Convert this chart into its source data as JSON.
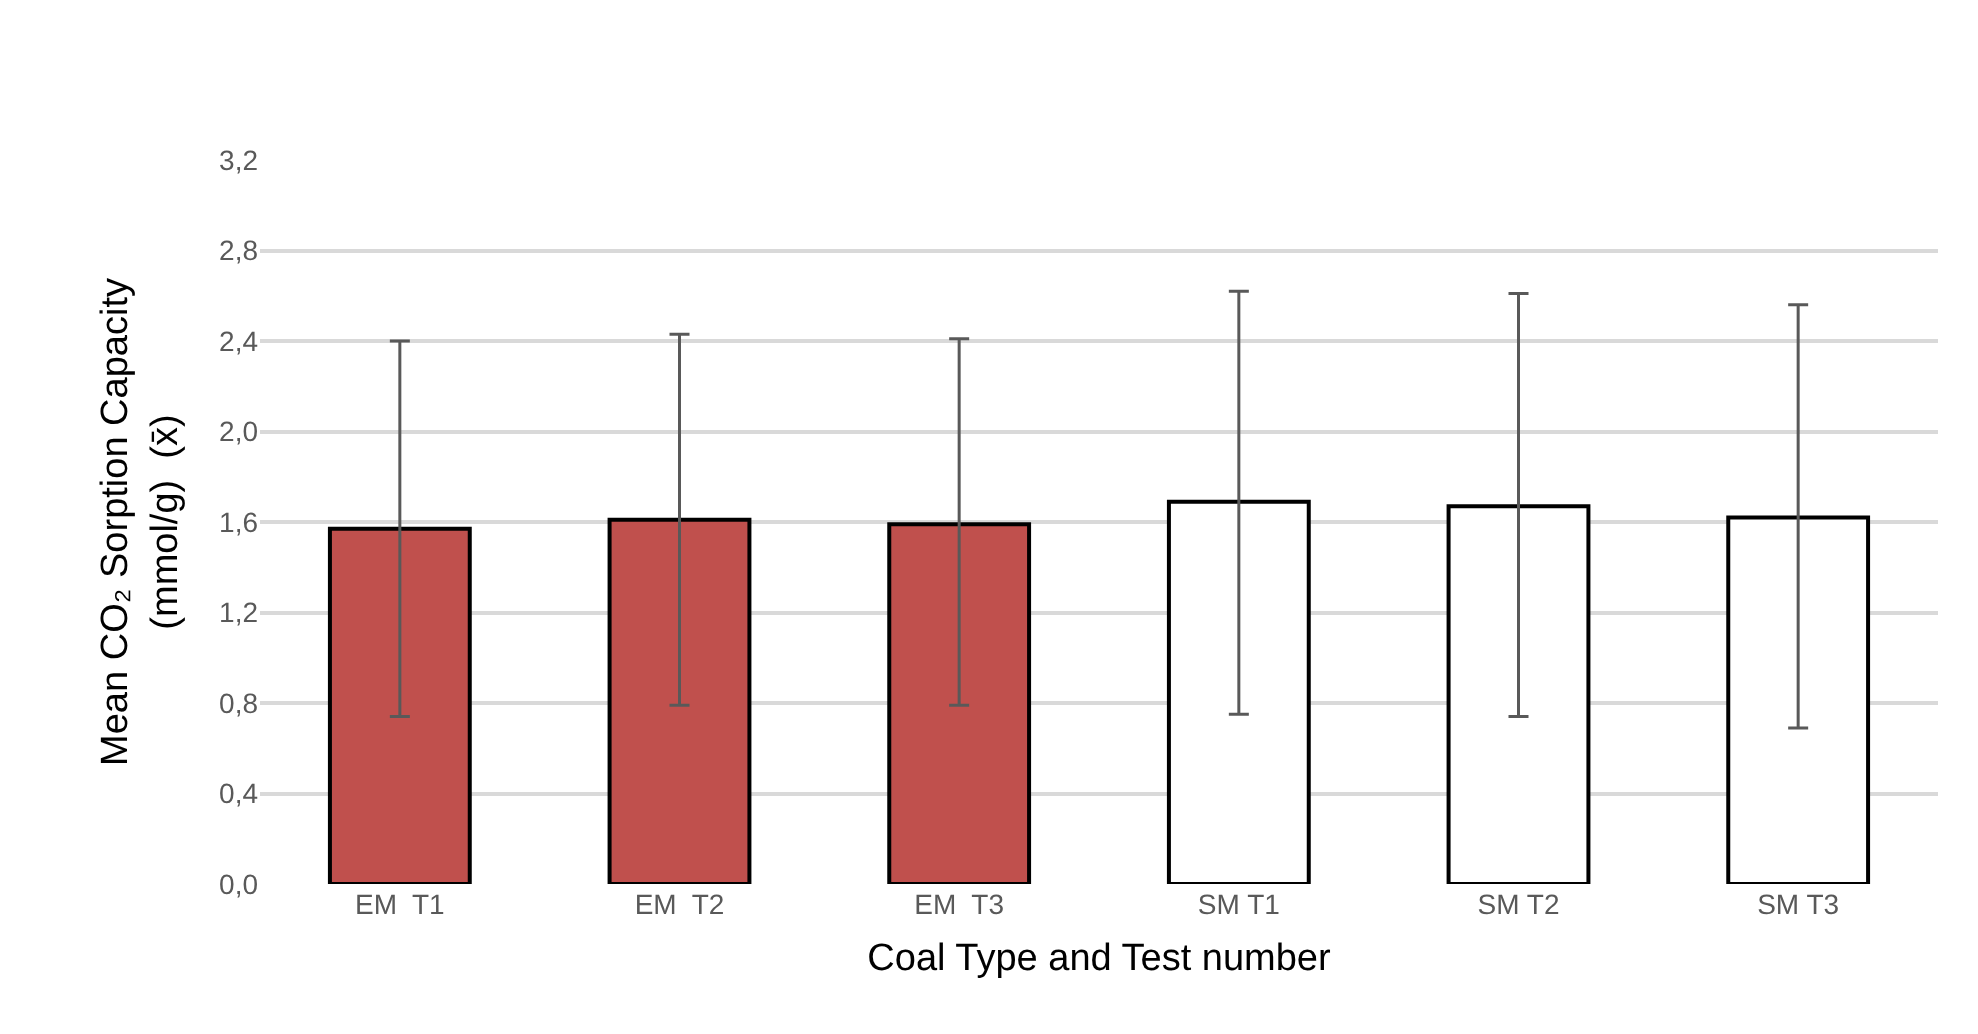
{
  "chart_data": {
    "type": "bar",
    "xlabel": "Coal Type and Test number",
    "ylabel": "Mean CO₂ Sorption Capacity\n(mmol/g)  (x̄)",
    "categories": [
      "EM  T1",
      "EM  T2",
      "EM  T3",
      "SM T1",
      "SM T2",
      "SM T3"
    ],
    "values": [
      1.57,
      1.61,
      1.59,
      1.69,
      1.67,
      1.62
    ],
    "colors": [
      "#c0504d",
      "#c0504d",
      "#c0504d",
      "#ffffff",
      "#ffffff",
      "#ffffff"
    ],
    "errors": [
      [
        0.74,
        2.4
      ],
      [
        0.79,
        2.43
      ],
      [
        0.79,
        2.41
      ],
      [
        0.75,
        2.62
      ],
      [
        0.74,
        2.61
      ],
      [
        0.69,
        2.56
      ]
    ],
    "ylim": [
      0,
      3.2
    ],
    "yticks": [
      {
        "value": 0,
        "label": "0,0"
      },
      {
        "value": 0.4,
        "label": "0,4"
      },
      {
        "value": 0.8,
        "label": "0,8"
      },
      {
        "value": 1.2,
        "label": "1,2"
      },
      {
        "value": 1.6,
        "label": "1,6"
      },
      {
        "value": 2.0,
        "label": "2,0"
      },
      {
        "value": 2.4,
        "label": "2,4"
      },
      {
        "value": 2.8,
        "label": "2,8"
      },
      {
        "value": 3.2,
        "label": "3,2"
      }
    ],
    "grid": "y"
  }
}
